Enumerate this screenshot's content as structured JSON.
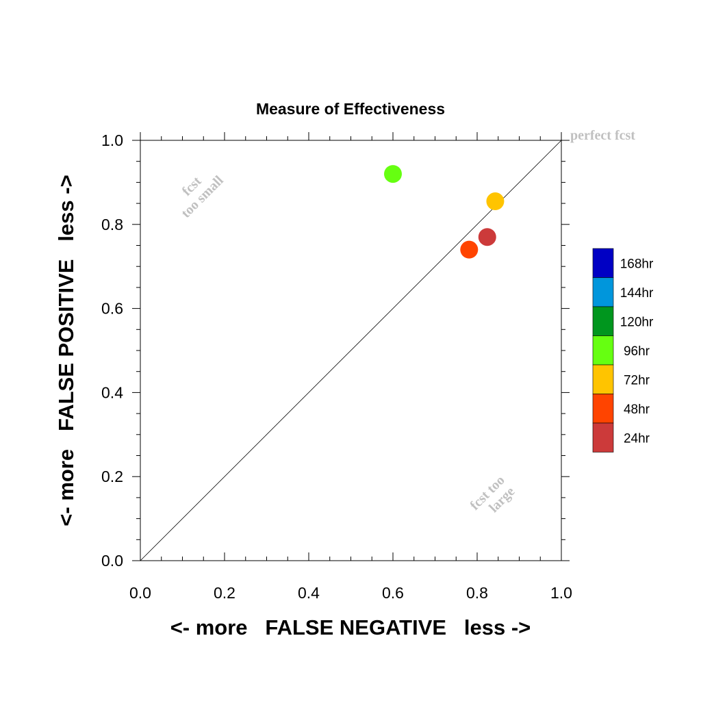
{
  "chart_data": {
    "type": "scatter",
    "title": "Measure of Effectiveness",
    "xlabel": "<- more   FALSE NEGATIVE   less ->",
    "ylabel": "<- more   FALSE POSITIVE   less ->",
    "xlim": [
      0.0,
      1.0
    ],
    "ylim": [
      0.0,
      1.0
    ],
    "xticks": [
      "0.0",
      "0.2",
      "0.4",
      "0.6",
      "0.8",
      "1.0"
    ],
    "yticks": [
      "0.0",
      "0.2",
      "0.4",
      "0.6",
      "0.8",
      "1.0"
    ],
    "grid": false,
    "reference_line": {
      "from": [
        0.0,
        0.0
      ],
      "to": [
        1.0,
        1.0
      ]
    },
    "annotations": {
      "perfect": "perfect fcst",
      "too_small_line1": "fcst",
      "too_small_line2": "too small",
      "too_large_line1": "fcst too",
      "too_large_line2": "large"
    },
    "points": [
      {
        "label": "96hr",
        "x": 0.6,
        "y": 0.92,
        "color": "#66ff11"
      },
      {
        "label": "72hr",
        "x": 0.843,
        "y": 0.855,
        "color": "#ffc400"
      },
      {
        "label": "48hr",
        "x": 0.781,
        "y": 0.74,
        "color": "#ff4400"
      },
      {
        "label": "24hr",
        "x": 0.824,
        "y": 0.77,
        "color": "#cc3a3a"
      }
    ],
    "legend": {
      "placement": "right",
      "entries": [
        {
          "label": "168hr",
          "color": "#0000c4"
        },
        {
          "label": "144hr",
          "color": "#0096dc"
        },
        {
          "label": "120hr",
          "color": "#00961e"
        },
        {
          "label": "96hr",
          "color": "#66ff11"
        },
        {
          "label": "72hr",
          "color": "#ffc400"
        },
        {
          "label": "48hr",
          "color": "#ff4400"
        },
        {
          "label": "24hr",
          "color": "#cc3a3a"
        }
      ]
    }
  }
}
